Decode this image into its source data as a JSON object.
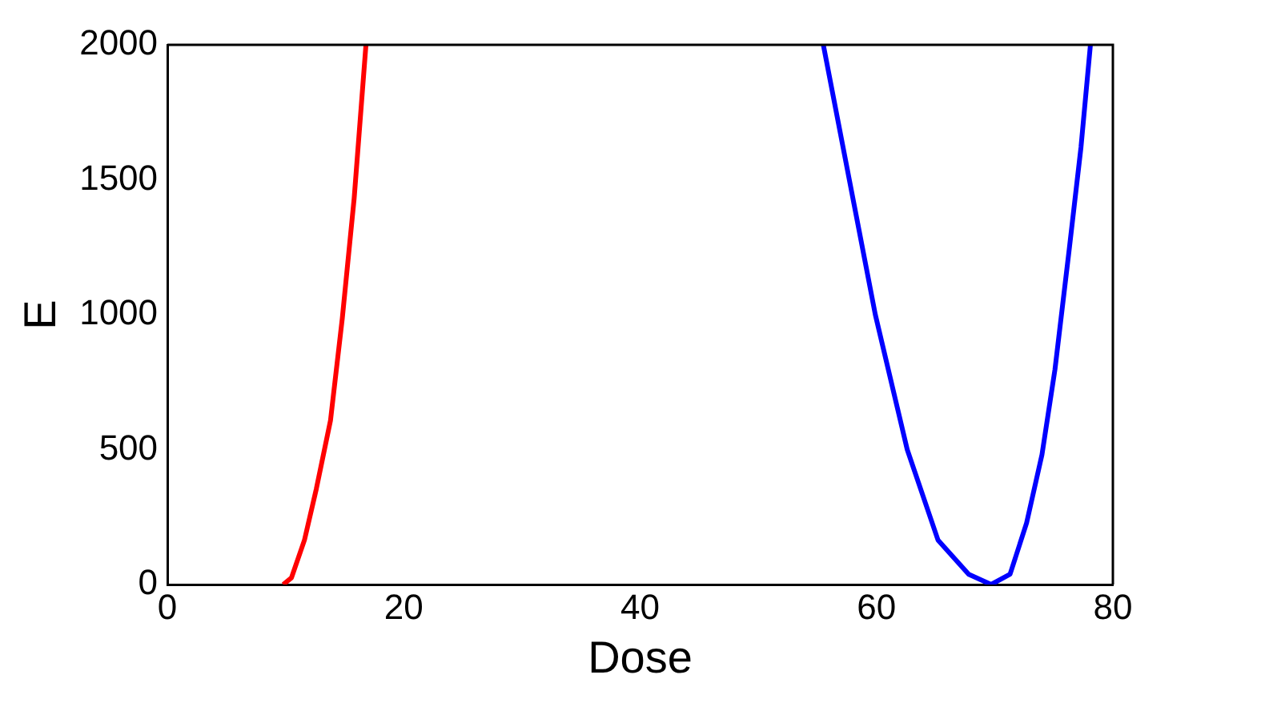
{
  "chart_data": {
    "type": "line",
    "xlabel": "Dose",
    "ylabel": "E",
    "xlim": [
      0,
      80
    ],
    "xticks": [
      0,
      20,
      40,
      60,
      80
    ],
    "ylim": [
      0,
      2000
    ],
    "yticks": [
      0,
      500,
      1000,
      1500,
      2000
    ],
    "grid": false,
    "legend": false,
    "series": [
      {
        "color": "#ff0000",
        "x": [
          9.8,
          10.5,
          11.6,
          12.6,
          13.8,
          14.8,
          15.8,
          16.8
        ],
        "values": [
          0,
          25,
          165,
          354,
          608,
          987,
          1430,
          2000
        ]
      },
      {
        "color": "#0000ff",
        "x": [
          55.5,
          57.7,
          59.9,
          62.6,
          65.2,
          67.8,
          69.7,
          71.3,
          72.7,
          74.0,
          75.1,
          76.3,
          77.3,
          78.1
        ],
        "values": [
          2000,
          1500,
          1000,
          500,
          165,
          38,
          0,
          38,
          228,
          481,
          797,
          1240,
          1620,
          2000
        ]
      }
    ]
  }
}
